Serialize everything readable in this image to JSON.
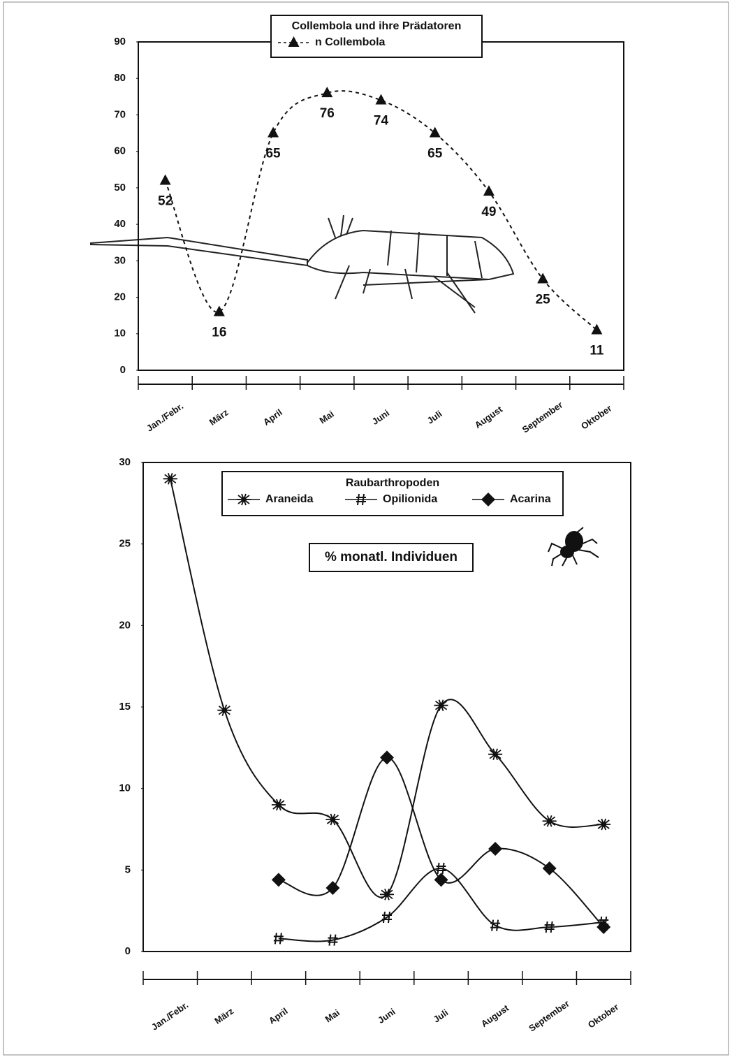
{
  "chart_data": [
    {
      "type": "line",
      "title": "Collembola und ihre Prädatoren",
      "categories": [
        "Jan./Febr.",
        "März",
        "April",
        "Mai",
        "Juni",
        "Juli",
        "August",
        "September",
        "Oktober"
      ],
      "series": [
        {
          "name": "n Collembola",
          "color": "#111111",
          "marker": "triangle",
          "line_style": "dashed",
          "values": [
            52,
            16,
            65,
            76,
            74,
            65,
            49,
            25,
            11
          ]
        }
      ],
      "data_labels": true,
      "ylim": [
        0,
        90
      ],
      "yticks": [
        0,
        10,
        20,
        30,
        40,
        50,
        60,
        70,
        80,
        90
      ],
      "grid": false
    },
    {
      "type": "line",
      "legend_title": "Raubarthropoden",
      "annotation": "% monatl. Individuen",
      "categories": [
        "Jan./Febr.",
        "März",
        "April",
        "Mai",
        "Juni",
        "Juli",
        "August",
        "September",
        "Oktober"
      ],
      "series": [
        {
          "name": "Araneida",
          "color": "#111111",
          "marker": "spider",
          "line_style": "solid",
          "values": [
            29,
            14.8,
            9,
            8.1,
            3.5,
            15.1,
            12.1,
            8,
            7.8
          ]
        },
        {
          "name": "Opilionida",
          "color": "#111111",
          "marker": "hash",
          "line_style": "solid",
          "values": [
            null,
            null,
            0.8,
            0.7,
            2.1,
            5.1,
            1.6,
            1.5,
            1.8
          ]
        },
        {
          "name": "Acarina",
          "color": "#111111",
          "marker": "diamond",
          "line_style": "solid",
          "values": [
            null,
            null,
            4.4,
            3.9,
            11.9,
            4.4,
            6.3,
            5.1,
            1.5
          ]
        }
      ],
      "data_labels": false,
      "ylim": [
        0,
        30
      ],
      "yticks": [
        0,
        5,
        10,
        15,
        20,
        25,
        30
      ],
      "grid": false
    }
  ]
}
